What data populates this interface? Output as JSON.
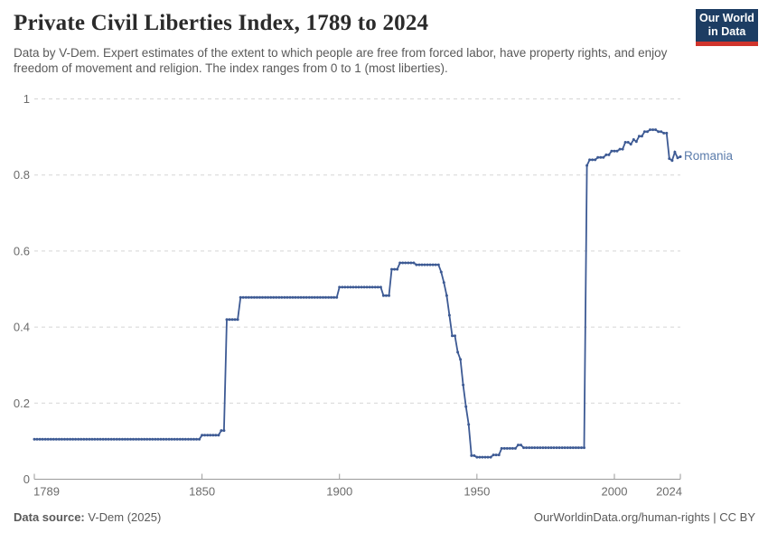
{
  "header": {
    "title": "Private Civil Liberties Index, 1789 to 2024",
    "subtitle": "Data by V-Dem. Expert estimates of the extent to which people are free from forced labor, have property rights, and enjoy freedom of movement and religion. The index ranges from 0 to 1 (most liberties).",
    "logo": {
      "line1": "Our World",
      "line2": "in Data",
      "bg_color": "#1d3d63",
      "stripe_color": "#d0342c"
    }
  },
  "chart_data": {
    "type": "line",
    "title": "Private Civil Liberties Index, 1789 to 2024",
    "xlabel": "",
    "ylabel": "",
    "x_range": [
      1789,
      2024
    ],
    "y_range": [
      0,
      1
    ],
    "xticks": [
      1789,
      1850,
      1900,
      1950,
      2000,
      2024
    ],
    "yticks": [
      0,
      0.2,
      0.4,
      0.6,
      0.8,
      1
    ],
    "grid": "horizontal-dashed",
    "legend": "end-of-line-label",
    "line_color": "#3d5a94",
    "label_color": "#5b7cab",
    "interpolation": "yearly-step-hold",
    "series": [
      {
        "name": "Romania",
        "breakpoints": [
          [
            1789,
            0.105
          ],
          [
            1850,
            0.116
          ],
          [
            1857,
            0.128
          ],
          [
            1859,
            0.42
          ],
          [
            1864,
            0.478
          ],
          [
            1900,
            0.505
          ],
          [
            1916,
            0.483
          ],
          [
            1919,
            0.552
          ],
          [
            1922,
            0.569
          ],
          [
            1928,
            0.564
          ],
          [
            1937,
            0.545
          ],
          [
            1938,
            0.517
          ],
          [
            1939,
            0.483
          ],
          [
            1940,
            0.431
          ],
          [
            1941,
            0.377
          ],
          [
            1943,
            0.334
          ],
          [
            1944,
            0.315
          ],
          [
            1945,
            0.248
          ],
          [
            1946,
            0.191
          ],
          [
            1947,
            0.144
          ],
          [
            1948,
            0.062
          ],
          [
            1950,
            0.058
          ],
          [
            1956,
            0.064
          ],
          [
            1959,
            0.081
          ],
          [
            1965,
            0.09
          ],
          [
            1967,
            0.083
          ],
          [
            1990,
            0.825
          ],
          [
            1991,
            0.84
          ],
          [
            1994,
            0.846
          ],
          [
            1997,
            0.853
          ],
          [
            1999,
            0.863
          ],
          [
            2002,
            0.868
          ],
          [
            2004,
            0.886
          ],
          [
            2006,
            0.881
          ],
          [
            2007,
            0.893
          ],
          [
            2008,
            0.888
          ],
          [
            2009,
            0.902
          ],
          [
            2011,
            0.914
          ],
          [
            2013,
            0.919
          ],
          [
            2016,
            0.914
          ],
          [
            2018,
            0.91
          ],
          [
            2020,
            0.843
          ],
          [
            2021,
            0.838
          ],
          [
            2022,
            0.86
          ],
          [
            2023,
            0.845
          ],
          [
            2024,
            0.848
          ]
        ]
      }
    ]
  },
  "footer": {
    "source_label": "Data source:",
    "source_text": " V-Dem (2025)",
    "url_text": "OurWorldinData.org/human-rights | CC BY"
  }
}
